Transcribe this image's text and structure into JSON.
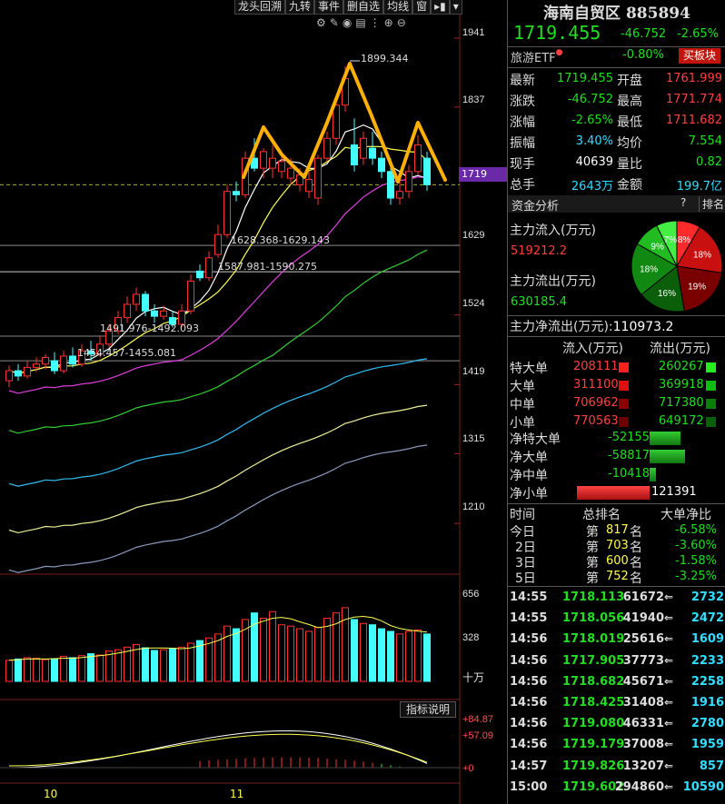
{
  "toolbar": {
    "items": [
      "龙头回溯",
      "九转",
      "事件",
      "删自选",
      "均线",
      "窗"
    ]
  },
  "chart": {
    "y_labels": [
      "1941",
      "1837",
      "1629",
      "1524",
      "1419",
      "1315",
      "1210"
    ],
    "current_price_tag": "1719",
    "annotations": {
      "peak": "1899.344",
      "gap1": "1628.368-1629.143",
      "gap2": "1587.981-1590.275",
      "gap3": "1491.976-1492.093",
      "gap4": "1454.457-1455.081"
    },
    "x_labels": [
      "10",
      "11"
    ],
    "volume_labels": [
      "656",
      "328",
      "十万"
    ],
    "indicator_labels": [
      "+84.87",
      "+57.09",
      "+0"
    ],
    "indicator_button": "指标说明"
  },
  "chart_data": {
    "type": "candlestick",
    "ylim": [
      1150,
      1960
    ],
    "candles": [
      {
        "o": 1425,
        "c": 1440,
        "h": 1448,
        "l": 1415
      },
      {
        "o": 1440,
        "c": 1432,
        "h": 1450,
        "l": 1425
      },
      {
        "o": 1432,
        "c": 1445,
        "h": 1455,
        "l": 1428
      },
      {
        "o": 1445,
        "c": 1450,
        "h": 1460,
        "l": 1438
      },
      {
        "o": 1450,
        "c": 1460,
        "h": 1465,
        "l": 1442
      },
      {
        "o": 1455,
        "c": 1440,
        "h": 1468,
        "l": 1435
      },
      {
        "o": 1440,
        "c": 1462,
        "h": 1470,
        "l": 1436
      },
      {
        "o": 1462,
        "c": 1450,
        "h": 1475,
        "l": 1445
      },
      {
        "o": 1450,
        "c": 1470,
        "h": 1480,
        "l": 1446
      },
      {
        "o": 1470,
        "c": 1465,
        "h": 1485,
        "l": 1455
      },
      {
        "o": 1465,
        "c": 1480,
        "h": 1492,
        "l": 1460
      },
      {
        "o": 1480,
        "c": 1500,
        "h": 1510,
        "l": 1475
      },
      {
        "o": 1500,
        "c": 1520,
        "h": 1530,
        "l": 1495
      },
      {
        "o": 1520,
        "c": 1540,
        "h": 1552,
        "l": 1512
      },
      {
        "o": 1540,
        "c": 1555,
        "h": 1565,
        "l": 1530
      },
      {
        "o": 1555,
        "c": 1530,
        "h": 1560,
        "l": 1522
      },
      {
        "o": 1530,
        "c": 1522,
        "h": 1540,
        "l": 1512
      },
      {
        "o": 1522,
        "c": 1530,
        "h": 1538,
        "l": 1516
      },
      {
        "o": 1520,
        "c": 1510,
        "h": 1530,
        "l": 1505
      },
      {
        "o": 1510,
        "c": 1530,
        "h": 1540,
        "l": 1505
      },
      {
        "o": 1530,
        "c": 1575,
        "h": 1585,
        "l": 1525
      },
      {
        "o": 1590,
        "c": 1580,
        "h": 1600,
        "l": 1575
      },
      {
        "o": 1580,
        "c": 1610,
        "h": 1620,
        "l": 1575
      },
      {
        "o": 1615,
        "c": 1645,
        "h": 1660,
        "l": 1610
      },
      {
        "o": 1645,
        "c": 1710,
        "h": 1720,
        "l": 1640
      },
      {
        "o": 1710,
        "c": 1705,
        "h": 1725,
        "l": 1695
      },
      {
        "o": 1705,
        "c": 1760,
        "h": 1770,
        "l": 1700
      },
      {
        "o": 1760,
        "c": 1745,
        "h": 1790,
        "l": 1740
      },
      {
        "o": 1745,
        "c": 1770,
        "h": 1775,
        "l": 1730
      },
      {
        "o": 1745,
        "c": 1760,
        "h": 1780,
        "l": 1730
      },
      {
        "o": 1740,
        "c": 1755,
        "h": 1770,
        "l": 1730
      },
      {
        "o": 1730,
        "c": 1745,
        "h": 1760,
        "l": 1720
      },
      {
        "o": 1720,
        "c": 1735,
        "h": 1745,
        "l": 1710
      },
      {
        "o": 1710,
        "c": 1728,
        "h": 1740,
        "l": 1700
      },
      {
        "o": 1700,
        "c": 1760,
        "h": 1765,
        "l": 1690
      },
      {
        "o": 1760,
        "c": 1790,
        "h": 1800,
        "l": 1755
      },
      {
        "o": 1790,
        "c": 1840,
        "h": 1850,
        "l": 1780
      },
      {
        "o": 1840,
        "c": 1880,
        "h": 1899,
        "l": 1830
      },
      {
        "o": 1780,
        "c": 1750,
        "h": 1820,
        "l": 1740
      },
      {
        "o": 1760,
        "c": 1790,
        "h": 1800,
        "l": 1750
      },
      {
        "o": 1775,
        "c": 1760,
        "h": 1800,
        "l": 1750
      },
      {
        "o": 1760,
        "c": 1740,
        "h": 1770,
        "l": 1730
      },
      {
        "o": 1740,
        "c": 1700,
        "h": 1760,
        "l": 1690
      },
      {
        "o": 1700,
        "c": 1710,
        "h": 1740,
        "l": 1690
      },
      {
        "o": 1710,
        "c": 1740,
        "h": 1750,
        "l": 1700
      },
      {
        "o": 1740,
        "c": 1780,
        "h": 1795,
        "l": 1735
      },
      {
        "o": 1760,
        "c": 1720,
        "h": 1770,
        "l": 1711
      }
    ],
    "volumes": [
      160,
      170,
      180,
      175,
      165,
      172,
      190,
      180,
      195,
      210,
      200,
      230,
      240,
      260,
      280,
      255,
      235,
      240,
      250,
      260,
      290,
      310,
      330,
      360,
      420,
      400,
      470,
      520,
      480,
      530,
      430,
      420,
      400,
      380,
      410,
      480,
      520,
      560,
      470,
      440,
      430,
      400,
      380,
      360,
      380,
      390,
      360
    ]
  },
  "panel": {
    "title": "海南自贸区 885894",
    "price": "1719.455",
    "change": "-46.752",
    "change_pct": "-2.65%",
    "etf_label": "旅游ETF",
    "etf_pct": "-0.80%",
    "buy_block": "买板块",
    "stats": [
      {
        "k1": "最新",
        "v1": "1719.455",
        "k2": "开盘",
        "v2": "1761.999"
      },
      {
        "k1": "涨跌",
        "v1": "-46.752",
        "k2": "最高",
        "v2": "1771.774"
      },
      {
        "k1": "涨幅",
        "v1": "-2.65%",
        "k2": "最低",
        "v2": "1711.682"
      },
      {
        "k1": "振幅",
        "v1": "3.40%",
        "k2": "均价",
        "v2": "7.554"
      },
      {
        "k1": "现手",
        "v1": "40639",
        "k2": "量比",
        "v2": "0.82"
      },
      {
        "k1": "总手",
        "v1": "2643万",
        "k2": "金额",
        "v2": "199.7亿"
      }
    ],
    "fund_title": "资金分析",
    "fund_q": "?",
    "fund_rank": "排名",
    "inflow_label": "主力流入(万元)",
    "inflow_value": "519212.2",
    "outflow_label": "主力流出(万元)",
    "outflow_value": "630185.4",
    "net_label": "主力净流出(万元):",
    "net_value": "110973.2",
    "pie": [
      "8%",
      "18%",
      "19%",
      "16%",
      "18%",
      "9%",
      "7%"
    ],
    "flow_head": [
      "流入(万元)",
      "流出(万元)"
    ],
    "flows": [
      {
        "k": "特大单",
        "in": "208111",
        "out": "260267"
      },
      {
        "k": "大单",
        "in": "311100",
        "out": "369918"
      },
      {
        "k": "中单",
        "in": "706962",
        "out": "717380"
      },
      {
        "k": "小单",
        "in": "770563",
        "out": "649172"
      }
    ],
    "nets": [
      {
        "k": "净特大单",
        "v": "-52155"
      },
      {
        "k": "净大单",
        "v": "-58817"
      },
      {
        "k": "净中单",
        "v": "-10418"
      },
      {
        "k": "净小单",
        "v": "121391"
      }
    ],
    "rank_head": [
      "时间",
      "总排名",
      "大单净比"
    ],
    "ranks": [
      {
        "t": "今日",
        "p": "第",
        "n": "817",
        "s": "名",
        "r": "-6.58%"
      },
      {
        "t": "2日",
        "p": "第",
        "n": "703",
        "s": "名",
        "r": "-3.60%"
      },
      {
        "t": "3日",
        "p": "第",
        "n": "600",
        "s": "名",
        "r": "-1.58%"
      },
      {
        "t": "5日",
        "p": "第",
        "n": "752",
        "s": "名",
        "r": "-3.25%"
      }
    ],
    "ticks": [
      {
        "t": "14:55",
        "p": "1718.113",
        "v": "61672",
        "n": "2732"
      },
      {
        "t": "14:55",
        "p": "1718.056",
        "v": "41940",
        "n": "2472"
      },
      {
        "t": "14:56",
        "p": "1718.019",
        "v": "25616",
        "n": "1609"
      },
      {
        "t": "14:56",
        "p": "1717.905",
        "v": "37773",
        "n": "2233"
      },
      {
        "t": "14:56",
        "p": "1718.682",
        "v": "45671",
        "n": "2258"
      },
      {
        "t": "14:56",
        "p": "1718.425",
        "v": "31408",
        "n": "1916"
      },
      {
        "t": "14:56",
        "p": "1719.080",
        "v": "46331",
        "n": "2780"
      },
      {
        "t": "14:56",
        "p": "1719.179",
        "v": "37008",
        "n": "1959"
      },
      {
        "t": "14:57",
        "p": "1719.826",
        "v": "13207",
        "n": "857"
      },
      {
        "t": "15:00",
        "p": "1719.602",
        "v": "294860",
        "n": "10590"
      }
    ]
  }
}
